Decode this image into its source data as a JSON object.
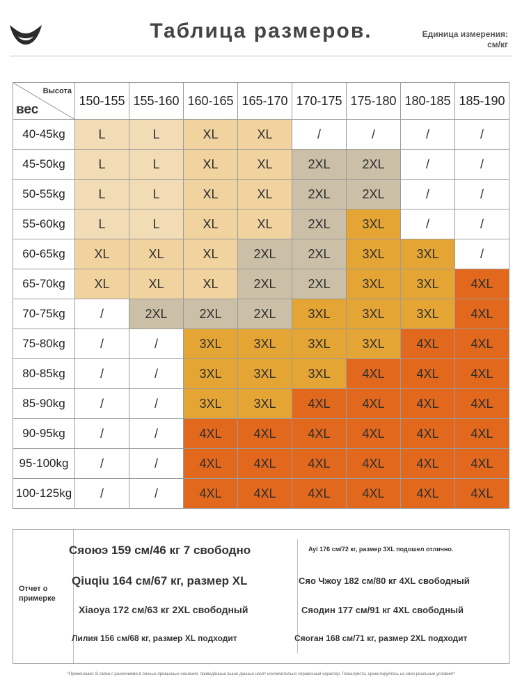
{
  "header": {
    "title": "Таблица размеров.",
    "unit_line1": "Единица измерения:",
    "unit_line2": "см/кг"
  },
  "table": {
    "corner_height_label": "Высота",
    "corner_weight_label": "вес",
    "height_columns": [
      "150-155",
      "155-160",
      "160-165",
      "165-170",
      "170-175",
      "175-180",
      "180-185",
      "185-190"
    ],
    "rows": [
      {
        "weight": "40-45kg",
        "sizes": [
          "L",
          "L",
          "XL",
          "XL",
          "/",
          "/",
          "/",
          "/"
        ]
      },
      {
        "weight": "45-50kg",
        "sizes": [
          "L",
          "L",
          "XL",
          "XL",
          "2XL",
          "2XL",
          "/",
          "/"
        ]
      },
      {
        "weight": "50-55kg",
        "sizes": [
          "L",
          "L",
          "XL",
          "XL",
          "2XL",
          "2XL",
          "/",
          "/"
        ]
      },
      {
        "weight": "55-60kg",
        "sizes": [
          "L",
          "L",
          "XL",
          "XL",
          "2XL",
          "3XL",
          "/",
          "/"
        ]
      },
      {
        "weight": "60-65kg",
        "sizes": [
          "XL",
          "XL",
          "XL",
          "2XL",
          "2XL",
          "3XL",
          "3XL",
          "/"
        ]
      },
      {
        "weight": "65-70kg",
        "sizes": [
          "XL",
          "XL",
          "XL",
          "2XL",
          "2XL",
          "3XL",
          "3XL",
          "4XL"
        ]
      },
      {
        "weight": "70-75kg",
        "sizes": [
          "/",
          "2XL",
          "2XL",
          "2XL",
          "3XL",
          "3XL",
          "3XL",
          "4XL"
        ]
      },
      {
        "weight": "75-80kg",
        "sizes": [
          "/",
          "/",
          "3XL",
          "3XL",
          "3XL",
          "3XL",
          "4XL",
          "4XL"
        ]
      },
      {
        "weight": "80-85kg",
        "sizes": [
          "/",
          "/",
          "3XL",
          "3XL",
          "3XL",
          "4XL",
          "4XL",
          "4XL"
        ]
      },
      {
        "weight": "85-90kg",
        "sizes": [
          "/",
          "/",
          "3XL",
          "3XL",
          "4XL",
          "4XL",
          "4XL",
          "4XL"
        ]
      },
      {
        "weight": "90-95kg",
        "sizes": [
          "/",
          "/",
          "4XL",
          "4XL",
          "4XL",
          "4XL",
          "4XL",
          "4XL"
        ]
      },
      {
        "weight": "95-100kg",
        "sizes": [
          "/",
          "/",
          "4XL",
          "4XL",
          "4XL",
          "4XL",
          "4XL",
          "4XL"
        ]
      },
      {
        "weight": "100-125kg",
        "sizes": [
          "/",
          "/",
          "4XL",
          "4XL",
          "4XL",
          "4XL",
          "4XL",
          "4XL"
        ]
      }
    ],
    "size_colors": {
      "L": "#f1dcb6",
      "XL": "#f0d39f",
      "2XL": "#cbbfa7",
      "3XL": "#e4a534",
      "4XL": "#e1681d",
      "/": "#ffffff"
    }
  },
  "reviews": {
    "label_line1": "Отчет о",
    "label_line2": "примерке",
    "left": [
      "Сяоюэ 159 см/46 кг 7 свободно",
      "Qiuqiu 164 см/67 кг, размер XL",
      "Xiaoya 172 см/63 кг 2XL свободный",
      "Лилия 156 см/68 кг, размер XL подходит"
    ],
    "right": [
      "Ayi 176 см/72 кг, размер 3XL подошел отлично.",
      "Сяо Чжоу 182 см/80 кг 4XL свободный",
      "Сяодин 177 см/91 кг 4XL свободный",
      "Сяоган 168 см/71 кг, размер 2XL подходит"
    ]
  },
  "footnote": "*Примечание: В связи с различиями в личных привычных ношения, приведённые выше данные носят исключительно справочный характер. Пожалуйста, ориентируйтесь на свои реальные условия!*"
}
